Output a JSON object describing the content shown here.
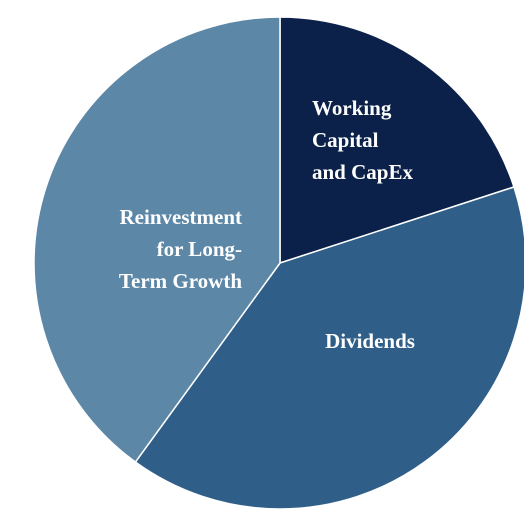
{
  "chart_data": {
    "type": "pie",
    "categories": [
      "Working\nCapital\nand CapEx",
      "Dividends",
      "Reinvestment\nfor Long-\nTerm Growth"
    ],
    "values": [
      20,
      40,
      40
    ],
    "colors": [
      "#0c2149",
      "#2f5f89",
      "#5d87a7"
    ]
  }
}
